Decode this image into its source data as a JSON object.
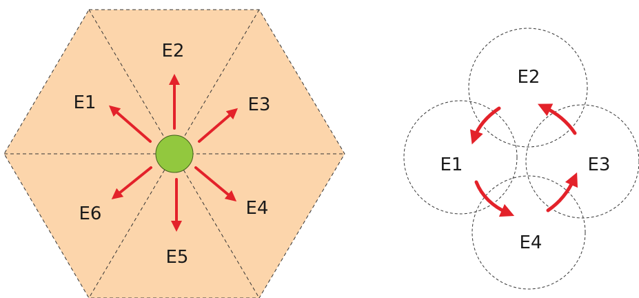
{
  "colors": {
    "hexagon_fill": "#fcd5ab",
    "arrow": "#e3222a",
    "center_dot": "#92c83e",
    "dashed_line": "#333333",
    "text": "#1a1a1a"
  },
  "hexagon_diagram": {
    "labels": [
      "E1",
      "E2",
      "E3",
      "E4",
      "E5",
      "E6"
    ]
  },
  "circle_diagram": {
    "labels": [
      "E1",
      "E2",
      "E3",
      "E4"
    ]
  }
}
